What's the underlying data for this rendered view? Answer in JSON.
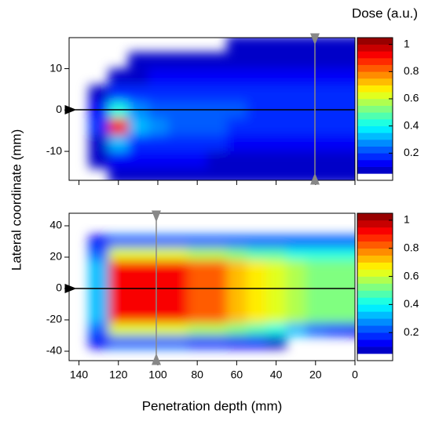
{
  "chart_data": [
    {
      "type": "heatmap",
      "ylabel": "Lateral coordinate (mm)",
      "colorbar_label": "Dose (a.u.)",
      "colormap": "jet",
      "xlim": [
        145,
        0
      ],
      "ylim": [
        -17,
        17.5
      ],
      "xticks": [
        140,
        120,
        100,
        80,
        60,
        40,
        20,
        0
      ],
      "xtick_labels": false,
      "yticks": [
        10,
        0,
        -10
      ],
      "zlim": [
        0,
        1.05
      ],
      "zticks": [
        1,
        0.8,
        0.6,
        0.4,
        0.2
      ],
      "contour_levels": 21,
      "x": [
        130,
        120,
        110,
        100,
        90,
        80,
        70,
        60,
        50,
        40,
        30,
        20,
        10,
        0
      ],
      "y": [
        16,
        12,
        8,
        4,
        0,
        -4,
        -8,
        -12,
        -16
      ],
      "z": [
        [
          0,
          0,
          0,
          0,
          0,
          0,
          0,
          0.05,
          0.05,
          0.05,
          0.05,
          0.05,
          0.05,
          0.05
        ],
        [
          0,
          0,
          0.05,
          0.05,
          0.05,
          0.05,
          0.07,
          0.08,
          0.08,
          0.08,
          0.08,
          0.08,
          0.08,
          0.08
        ],
        [
          0,
          0.05,
          0.08,
          0.1,
          0.1,
          0.1,
          0.12,
          0.12,
          0.12,
          0.12,
          0.12,
          0.12,
          0.12,
          0.12
        ],
        [
          0.05,
          0.15,
          0.15,
          0.15,
          0.17,
          0.17,
          0.17,
          0.17,
          0.16,
          0.16,
          0.16,
          0.15,
          0.15,
          0.15
        ],
        [
          0.1,
          0.4,
          0.25,
          0.22,
          0.22,
          0.2,
          0.2,
          0.2,
          0.19,
          0.18,
          0.18,
          0.17,
          0.17,
          0.17
        ],
        [
          0.15,
          0.9,
          0.3,
          0.25,
          0.22,
          0.2,
          0.2,
          0.19,
          0.18,
          0.18,
          0.17,
          0.17,
          0.16,
          0.16
        ],
        [
          0.08,
          0.3,
          0.18,
          0.17,
          0.16,
          0.15,
          0.15,
          0.14,
          0.14,
          0.13,
          0.13,
          0.12,
          0.12,
          0.12
        ],
        [
          0.05,
          0.1,
          0.1,
          0.1,
          0.1,
          0.1,
          0.09,
          0.09,
          0.09,
          0.08,
          0.08,
          0.08,
          0.08,
          0.08
        ],
        [
          0,
          0.05,
          0.05,
          0.05,
          0.05,
          0.05,
          0.05,
          0.05,
          0.05,
          0.05,
          0.05,
          0.05,
          0.05,
          0.05
        ]
      ]
    },
    {
      "type": "heatmap",
      "xlabel": "Penetration depth (mm)",
      "colormap": "jet",
      "xlim": [
        145,
        0
      ],
      "ylim": [
        -46,
        48
      ],
      "xticks": [
        140,
        120,
        100,
        80,
        60,
        40,
        20,
        0
      ],
      "xtick_labels": true,
      "yticks": [
        40,
        20,
        0,
        -20,
        -40
      ],
      "zlim": [
        0,
        1.05
      ],
      "zticks": [
        1,
        0.8,
        0.6,
        0.4,
        0.2
      ],
      "contour_levels": 21,
      "x": [
        130,
        120,
        110,
        100,
        90,
        80,
        70,
        60,
        50,
        40,
        30,
        20,
        10,
        0
      ],
      "y": [
        30,
        22,
        14,
        6,
        -2,
        -10,
        -18,
        -26,
        -34,
        -42
      ],
      "z": [
        [
          0.1,
          0.2,
          0.2,
          0.2,
          0.2,
          0.2,
          0.2,
          0.2,
          0.2,
          0.2,
          0.2,
          0.2,
          0.2,
          0.2
        ],
        [
          0.2,
          0.6,
          0.6,
          0.6,
          0.6,
          0.55,
          0.55,
          0.5,
          0.45,
          0.45,
          0.4,
          0.4,
          0.4,
          0.4
        ],
        [
          0.3,
          0.95,
          0.95,
          0.95,
          0.9,
          0.85,
          0.8,
          0.7,
          0.65,
          0.6,
          0.55,
          0.5,
          0.5,
          0.5
        ],
        [
          0.3,
          0.95,
          0.95,
          0.95,
          0.9,
          0.85,
          0.8,
          0.7,
          0.65,
          0.6,
          0.55,
          0.5,
          0.5,
          0.5
        ],
        [
          0.3,
          0.95,
          0.95,
          0.95,
          0.9,
          0.85,
          0.8,
          0.7,
          0.65,
          0.6,
          0.55,
          0.5,
          0.5,
          0.5
        ],
        [
          0.3,
          0.95,
          0.95,
          0.95,
          0.9,
          0.85,
          0.8,
          0.7,
          0.65,
          0.6,
          0.55,
          0.5,
          0.5,
          0.5
        ],
        [
          0.3,
          0.95,
          0.95,
          0.95,
          0.9,
          0.85,
          0.8,
          0.7,
          0.65,
          0.6,
          0.55,
          0.5,
          0.5,
          0.5
        ],
        [
          0.2,
          0.6,
          0.6,
          0.6,
          0.6,
          0.55,
          0.55,
          0.5,
          0.45,
          0.4,
          0.3,
          0.2,
          0.15,
          0.1
        ],
        [
          0.1,
          0.2,
          0.2,
          0.2,
          0.2,
          0.15,
          0.15,
          0.1,
          0.1,
          0.05,
          0,
          0,
          0,
          0
        ],
        [
          0,
          0,
          0,
          0,
          0,
          0,
          0,
          0,
          0,
          0,
          0,
          0,
          0,
          0
        ]
      ]
    }
  ]
}
